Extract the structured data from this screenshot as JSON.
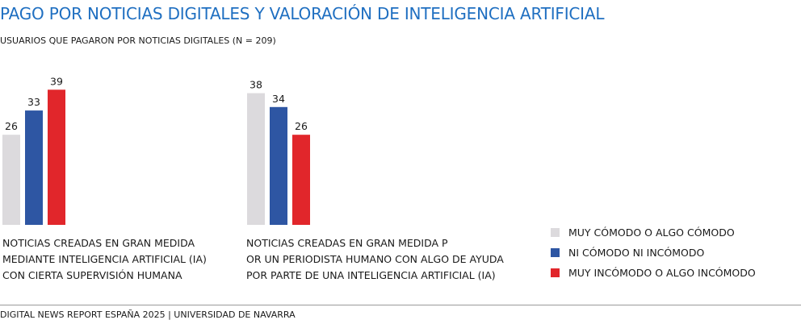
{
  "header": {
    "title": "PAGO POR NOTICIAS DIGITALES Y VALORACIÓN DE INTELIGENCIA ARTIFICIAL",
    "subtitle": "USUARIOS QUE PAGARON POR NOTICIAS DIGITALES (N = 209)"
  },
  "chart_data": {
    "type": "bar",
    "title": "PAGO POR NOTICIAS DIGITALES Y VALORACIÓN DE INTELIGENCIA ARTIFICIAL",
    "subtitle": "USUARIOS QUE PAGARON POR NOTICIAS DIGITALES (N = 209)",
    "ylim": [
      0,
      45
    ],
    "grid": false,
    "legend_position": "right",
    "groups": [
      {
        "label_lines": [
          "NOTICIAS CREADAS EN GRAN MEDIDA",
          "MEDIANTE INTELIGENCIA ARTIFICIAL (IA)",
          "CON CIERTA SUPERVISIÓN HUMANA"
        ],
        "values": [
          26,
          33,
          39
        ]
      },
      {
        "label_lines": [
          "NOTICIAS CREADAS EN GRAN MEDIDA P",
          "OR UN PERIODISTA HUMANO CON ALGO DE AYUDA",
          "POR PARTE DE UNA INTELIGENCIA ARTIFICIAL (IA)"
        ],
        "values": [
          38,
          34,
          26
        ]
      }
    ],
    "series": [
      {
        "name": "MUY CÓMODO O ALGO CÓMODO",
        "color": "#dcdadd"
      },
      {
        "name": "NI CÓMODO NI INCÓMODO",
        "color": "#2e56a3"
      },
      {
        "name": "MUY INCÓMODO O ALGO INCÓMODO",
        "color": "#e1262b"
      }
    ]
  },
  "footer": {
    "source": "DIGITAL NEWS REPORT ESPAÑA 2025 | UNIVERSIDAD DE NAVARRA"
  }
}
